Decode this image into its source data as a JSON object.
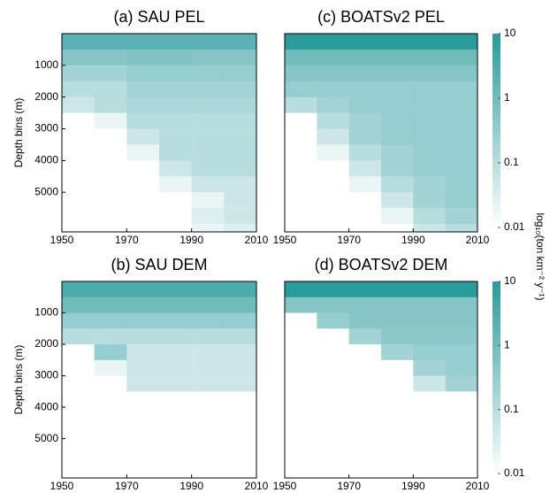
{
  "chart_data": [
    {
      "type": "heatmap",
      "title": "(a) SAU PEL",
      "ylabel": "Depth bins (m)",
      "xlim": [
        1950,
        2010
      ],
      "xticks": [
        1950,
        1970,
        1990,
        2010
      ],
      "ylim": [
        0,
        6250
      ],
      "yticks": [
        1000,
        2000,
        3000,
        4000,
        5000
      ],
      "x_bins": [
        1950,
        1960,
        1970,
        1980,
        1990,
        2000,
        2010
      ],
      "y_bins": [
        0,
        500,
        1000,
        1500,
        2000,
        2500,
        3000,
        3500,
        4000,
        4500,
        5000,
        5500,
        6000,
        6250
      ],
      "values": [
        [
          2,
          2,
          2,
          2,
          2,
          2
        ],
        [
          0.5,
          0.5,
          0.6,
          0.6,
          0.5,
          0.5
        ],
        [
          0.2,
          0.2,
          0.3,
          0.3,
          0.3,
          0.3
        ],
        [
          0.1,
          0.1,
          0.2,
          0.2,
          0.2,
          0.2
        ],
        [
          0.05,
          0.1,
          0.15,
          0.15,
          0.15,
          0.15
        ],
        [
          0.01,
          0.02,
          0.1,
          0.1,
          0.1,
          0.1
        ],
        [
          0.01,
          0.01,
          0.05,
          0.1,
          0.1,
          0.1
        ],
        [
          0.01,
          0.01,
          0.02,
          0.1,
          0.1,
          0.1
        ],
        [
          0.01,
          0.01,
          0.01,
          0.05,
          0.1,
          0.1
        ],
        [
          0.01,
          0.01,
          0.01,
          0.02,
          0.05,
          0.05
        ],
        [
          0.01,
          0.01,
          0.01,
          0.01,
          0.02,
          0.05
        ],
        [
          0.01,
          0.01,
          0.01,
          0.01,
          0.03,
          0.05
        ],
        [
          0.01,
          0.01,
          0.01,
          0.01,
          0.02,
          0.03
        ]
      ],
      "colormap": [
        "#ffffff",
        "#2a9a9c"
      ],
      "clim": [
        0.01,
        10
      ],
      "log": true
    },
    {
      "type": "heatmap",
      "title": "(b) SAU DEM",
      "ylabel": "Depth bins (m)",
      "xlim": [
        1950,
        2010
      ],
      "xticks": [
        1950,
        1970,
        1990,
        2010
      ],
      "ylim": [
        0,
        6250
      ],
      "yticks": [
        1000,
        2000,
        3000,
        4000,
        5000
      ],
      "x_bins": [
        1950,
        1960,
        1970,
        1980,
        1990,
        2000,
        2010
      ],
      "y_bins": [
        0,
        500,
        1000,
        1500,
        2000,
        2500,
        3000,
        3500,
        4000,
        4500,
        5000,
        5500,
        6000,
        6250
      ],
      "values": [
        [
          3,
          3,
          3,
          3,
          3,
          3
        ],
        [
          1,
          1,
          1,
          1,
          1,
          1
        ],
        [
          0.3,
          0.3,
          0.3,
          0.3,
          0.3,
          0.3
        ],
        [
          0.1,
          0.1,
          0.1,
          0.1,
          0.1,
          0.1
        ],
        [
          0.01,
          0.3,
          0.05,
          0.05,
          0.05,
          0.05
        ],
        [
          0.01,
          0.02,
          0.05,
          0.05,
          0.05,
          0.05
        ],
        [
          0.01,
          0.01,
          0.05,
          0.05,
          0.05,
          0.05
        ],
        [
          0.01,
          0.01,
          0.01,
          0.01,
          0.01,
          0.01
        ],
        [
          0.01,
          0.01,
          0.01,
          0.01,
          0.01,
          0.01
        ],
        [
          0.01,
          0.01,
          0.01,
          0.01,
          0.01,
          0.01
        ],
        [
          0.01,
          0.01,
          0.01,
          0.01,
          0.01,
          0.01
        ],
        [
          0.01,
          0.01,
          0.01,
          0.01,
          0.01,
          0.01
        ],
        [
          0.01,
          0.01,
          0.01,
          0.01,
          0.01,
          0.01
        ]
      ],
      "colormap": [
        "#ffffff",
        "#2a9a9c"
      ],
      "clim": [
        0.01,
        10
      ],
      "log": true
    },
    {
      "type": "heatmap",
      "title": "(c) BOATSv2 PEL",
      "xlim": [
        1950,
        2010
      ],
      "xticks": [
        1950,
        1970,
        1990,
        2010
      ],
      "ylim": [
        0,
        6250
      ],
      "x_bins": [
        1950,
        1960,
        1970,
        1980,
        1990,
        2000,
        2010
      ],
      "y_bins": [
        0,
        500,
        1000,
        1500,
        2000,
        2500,
        3000,
        3500,
        4000,
        4500,
        5000,
        5500,
        6000,
        6250
      ],
      "values": [
        [
          10,
          10,
          10,
          10,
          10,
          10
        ],
        [
          1,
          1,
          1,
          1,
          1,
          1
        ],
        [
          0.5,
          0.5,
          0.5,
          0.5,
          0.5,
          0.5
        ],
        [
          0.3,
          0.3,
          0.3,
          0.3,
          0.3,
          0.3
        ],
        [
          0.1,
          0.2,
          0.3,
          0.3,
          0.3,
          0.3
        ],
        [
          0.01,
          0.1,
          0.2,
          0.3,
          0.3,
          0.3
        ],
        [
          0.01,
          0.05,
          0.2,
          0.3,
          0.3,
          0.3
        ],
        [
          0.01,
          0.02,
          0.1,
          0.2,
          0.3,
          0.3
        ],
        [
          0.01,
          0.01,
          0.05,
          0.2,
          0.3,
          0.3
        ],
        [
          0.01,
          0.01,
          0.02,
          0.1,
          0.2,
          0.3
        ],
        [
          0.01,
          0.01,
          0.01,
          0.05,
          0.2,
          0.3
        ],
        [
          0.01,
          0.01,
          0.01,
          0.02,
          0.1,
          0.2
        ],
        [
          0.01,
          0.01,
          0.01,
          0.01,
          0.05,
          0.1
        ]
      ],
      "colormap": [
        "#ffffff",
        "#2a9a9c"
      ],
      "clim": [
        0.01,
        10
      ],
      "log": true,
      "colorbar_ticks": [
        10,
        1,
        0.1,
        0.01
      ]
    },
    {
      "type": "heatmap",
      "title": "(d) BOATSv2 DEM",
      "xlim": [
        1950,
        2010
      ],
      "xticks": [
        1950,
        1970,
        1990,
        2010
      ],
      "ylim": [
        0,
        6250
      ],
      "x_bins": [
        1950,
        1960,
        1970,
        1980,
        1990,
        2000,
        2010
      ],
      "y_bins": [
        0,
        500,
        1000,
        1500,
        2000,
        2500,
        3000,
        3500,
        4000,
        4500,
        5000,
        5500,
        6000,
        6250
      ],
      "values": [
        [
          10,
          10,
          10,
          10,
          10,
          10
        ],
        [
          0.5,
          0.5,
          0.5,
          0.5,
          0.5,
          0.5
        ],
        [
          0.01,
          0.3,
          0.5,
          0.5,
          0.5,
          0.5
        ],
        [
          0.01,
          0.01,
          0.2,
          0.4,
          0.4,
          0.4
        ],
        [
          0.01,
          0.01,
          0.01,
          0.2,
          0.3,
          0.3
        ],
        [
          0.01,
          0.01,
          0.01,
          0.01,
          0.2,
          0.3
        ],
        [
          0.01,
          0.01,
          0.01,
          0.01,
          0.05,
          0.2
        ],
        [
          0.01,
          0.01,
          0.01,
          0.01,
          0.01,
          0.01
        ],
        [
          0.01,
          0.01,
          0.01,
          0.01,
          0.01,
          0.01
        ],
        [
          0.01,
          0.01,
          0.01,
          0.01,
          0.01,
          0.01
        ],
        [
          0.01,
          0.01,
          0.01,
          0.01,
          0.01,
          0.01
        ],
        [
          0.01,
          0.01,
          0.01,
          0.01,
          0.01,
          0.01
        ],
        [
          0.01,
          0.01,
          0.01,
          0.01,
          0.01,
          0.01
        ]
      ],
      "colormap": [
        "#ffffff",
        "#2a9a9c"
      ],
      "clim": [
        0.01,
        10
      ],
      "log": true,
      "colorbar_ticks": [
        10,
        1,
        0.1,
        0.01
      ]
    }
  ],
  "colorbar_label": "log₁₀(ton km⁻² y⁻¹)"
}
